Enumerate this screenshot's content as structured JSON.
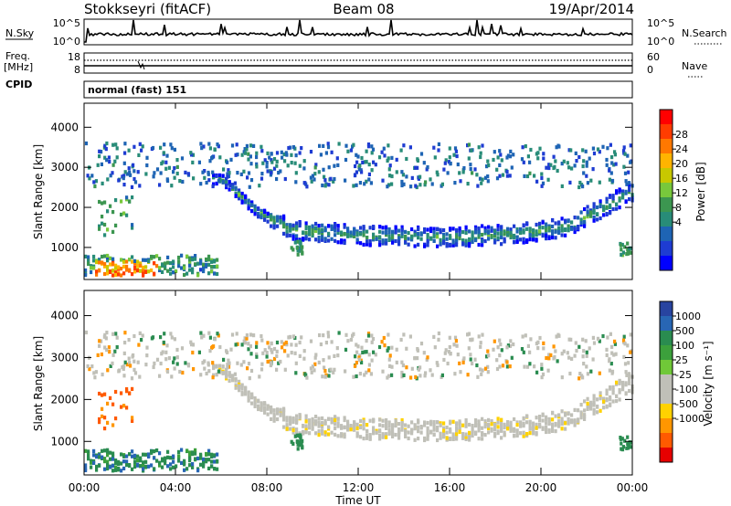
{
  "header": {
    "station": "Stokkseyri (fitACF)",
    "beam": "Beam 08",
    "date": "19/Apr/2014"
  },
  "noise_panel": {
    "left_label": "N.Sky",
    "right_label": "N.Search",
    "left_ticks": [
      "10^5",
      "10^0"
    ],
    "right_ticks": [
      "10^5",
      "10^0"
    ]
  },
  "freq_panel": {
    "left_label_top": "Freq.",
    "left_label_bottom": "[MHz]",
    "cpid_label": "CPID",
    "right_label": "Nave",
    "left_ticks": [
      "18",
      "8"
    ],
    "right_ticks": [
      "60",
      "0"
    ]
  },
  "mode_text": "normal (fast) 151",
  "x_axis": {
    "label": "Time UT",
    "ticks": [
      "00:00",
      "04:00",
      "08:00",
      "12:00",
      "16:00",
      "20:00",
      "00:00"
    ]
  },
  "chart_data": [
    {
      "type": "heatmap",
      "panel": "power",
      "xlabel": "Time UT",
      "ylabel": "Slant Range [km]",
      "x_range_hours": [
        0,
        24
      ],
      "ylim": [
        200,
        4600
      ],
      "y_ticks": [
        "1000",
        "2000",
        "3000",
        "4000"
      ],
      "colorbar": {
        "label": "Power [dB]",
        "ticks": [
          "28",
          "24",
          "20",
          "16",
          "12",
          "8",
          "4"
        ],
        "colors": [
          "#ff0000",
          "#ff3c00",
          "#ff7800",
          "#ffb400",
          "#c8c800",
          "#78c83c",
          "#3c9650",
          "#288c78",
          "#1e64b4",
          "#1e3cd2",
          "#0000ff"
        ]
      },
      "features": [
        {
          "name": "main arc",
          "start_hour": 5.0,
          "end_hour": 24.0,
          "range_km": [
            2700,
            1900,
            1450,
            1300,
            1250,
            1350,
            1500,
            2400
          ],
          "at_hours": [
            6.0,
            7.5,
            9.0,
            12.0,
            16.0,
            19.0,
            21.0,
            24.0
          ],
          "peak_power_db": 16
        },
        {
          "name": "near-range echoes",
          "start_hour": 0.0,
          "end_hour": 5.8,
          "range_km": [
            300,
            800
          ],
          "peak_power_db": 28
        },
        {
          "name": "scattered far-range echoes",
          "start_hour": 0.0,
          "end_hour": 24.0,
          "range_km": [
            2500,
            3600
          ],
          "peak_power_db": 10
        }
      ]
    },
    {
      "type": "heatmap",
      "panel": "velocity",
      "xlabel": "Time UT",
      "ylabel": "Slant Range [km]",
      "x_range_hours": [
        0,
        24
      ],
      "ylim": [
        200,
        4600
      ],
      "y_ticks": [
        "1000",
        "2000",
        "3000",
        "4000"
      ],
      "colorbar": {
        "label": "Velocity [m s⁻¹]",
        "ticks": [
          "1000",
          "500",
          "100",
          "25",
          "-25",
          "-100",
          "-500",
          "-1000"
        ],
        "colors": [
          "#2844a0",
          "#2866b4",
          "#2a8c50",
          "#3ca03c",
          "#70c838",
          "#c0c0b8",
          "#c0c0b8",
          "#ffd200",
          "#ff9600",
          "#ff5a00",
          "#e60000"
        ]
      },
      "features": [
        {
          "name": "ground scatter arc",
          "start_hour": 5.0,
          "end_hour": 24.0,
          "velocity_ms": 0
        },
        {
          "name": "near-range flow",
          "start_hour": 0.0,
          "end_hour": 5.8,
          "velocity_ms": 300
        },
        {
          "name": "receding patches",
          "start_hour": 1.0,
          "end_hour": 1.8,
          "velocity_ms": -500
        }
      ]
    }
  ]
}
